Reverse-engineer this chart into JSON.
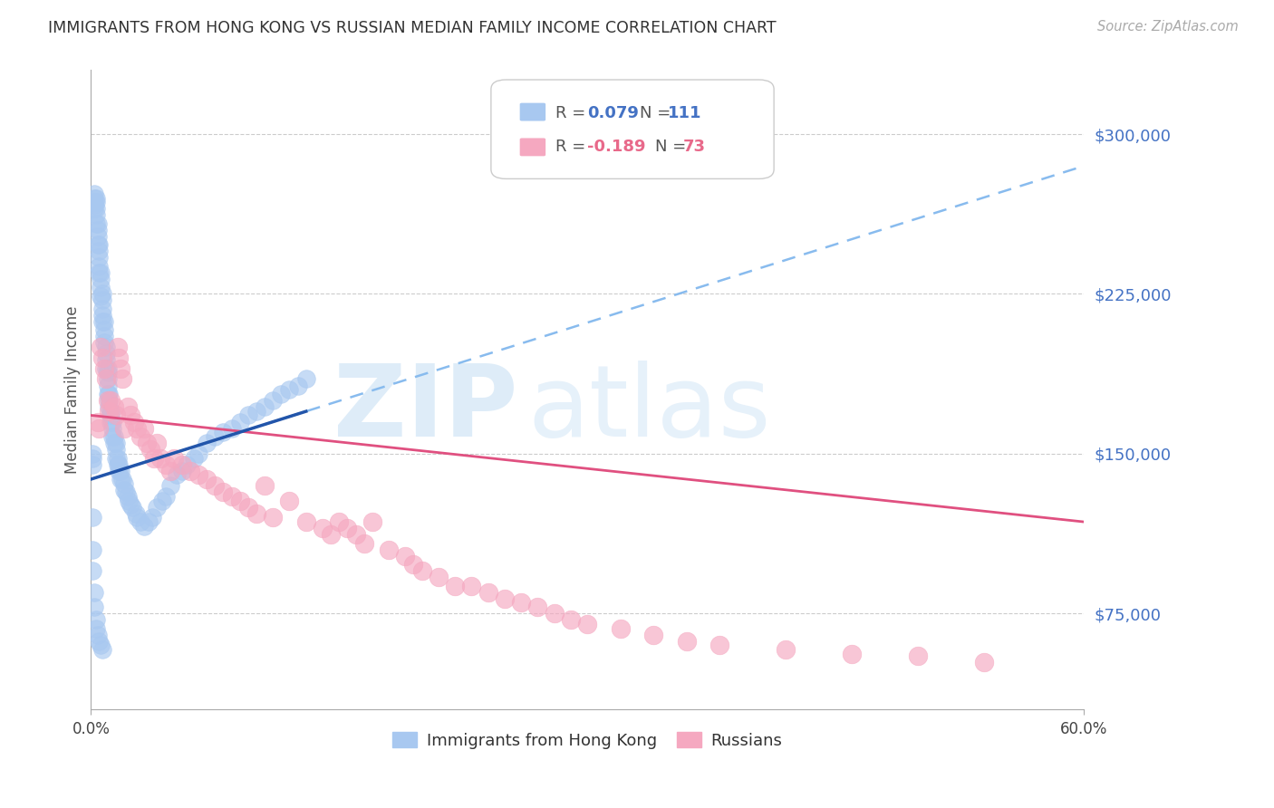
{
  "title": "IMMIGRANTS FROM HONG KONG VS RUSSIAN MEDIAN FAMILY INCOME CORRELATION CHART",
  "source": "Source: ZipAtlas.com",
  "ylabel": "Median Family Income",
  "y_tick_values": [
    75000,
    150000,
    225000,
    300000
  ],
  "y_tick_labels": [
    "$75,000",
    "$150,000",
    "$225,000",
    "$300,000"
  ],
  "y_min": 30000,
  "y_max": 330000,
  "x_min": 0.0,
  "x_max": 0.6,
  "hk_color": "#A8C8F0",
  "ru_color": "#F5A8C0",
  "hk_line_color": "#2255AA",
  "ru_line_color": "#E05080",
  "hk_dash_color": "#88BBEE",
  "legend_box_edge": "#CCCCCC",
  "grid_color": "#CCCCCC",
  "hk_points_x": [
    0.001,
    0.001,
    0.001,
    0.002,
    0.002,
    0.002,
    0.002,
    0.002,
    0.003,
    0.003,
    0.003,
    0.003,
    0.003,
    0.004,
    0.004,
    0.004,
    0.004,
    0.005,
    0.005,
    0.005,
    0.005,
    0.005,
    0.006,
    0.006,
    0.006,
    0.006,
    0.007,
    0.007,
    0.007,
    0.007,
    0.007,
    0.008,
    0.008,
    0.008,
    0.008,
    0.009,
    0.009,
    0.009,
    0.009,
    0.01,
    0.01,
    0.01,
    0.01,
    0.01,
    0.011,
    0.011,
    0.011,
    0.012,
    0.012,
    0.012,
    0.013,
    0.013,
    0.013,
    0.014,
    0.014,
    0.015,
    0.015,
    0.015,
    0.016,
    0.016,
    0.017,
    0.017,
    0.018,
    0.018,
    0.019,
    0.02,
    0.02,
    0.021,
    0.022,
    0.023,
    0.024,
    0.025,
    0.027,
    0.028,
    0.03,
    0.032,
    0.035,
    0.037,
    0.04,
    0.043,
    0.045,
    0.048,
    0.052,
    0.055,
    0.058,
    0.062,
    0.065,
    0.07,
    0.075,
    0.08,
    0.085,
    0.09,
    0.095,
    0.1,
    0.105,
    0.11,
    0.115,
    0.12,
    0.125,
    0.13,
    0.001,
    0.001,
    0.001,
    0.002,
    0.002,
    0.003,
    0.003,
    0.004,
    0.005,
    0.006,
    0.007
  ],
  "hk_points_y": [
    145000,
    150000,
    148000,
    270000,
    268000,
    272000,
    265000,
    267000,
    270000,
    268000,
    265000,
    262000,
    258000,
    258000,
    255000,
    252000,
    248000,
    248000,
    245000,
    242000,
    238000,
    235000,
    235000,
    232000,
    228000,
    224000,
    225000,
    222000,
    218000,
    215000,
    212000,
    212000,
    208000,
    205000,
    202000,
    200000,
    197000,
    194000,
    190000,
    190000,
    188000,
    185000,
    182000,
    178000,
    178000,
    175000,
    172000,
    170000,
    168000,
    165000,
    165000,
    162000,
    158000,
    158000,
    155000,
    155000,
    152000,
    148000,
    148000,
    145000,
    145000,
    142000,
    142000,
    138000,
    138000,
    136000,
    133000,
    132000,
    130000,
    128000,
    126000,
    125000,
    122000,
    120000,
    118000,
    116000,
    118000,
    120000,
    125000,
    128000,
    130000,
    135000,
    140000,
    142000,
    145000,
    148000,
    150000,
    155000,
    158000,
    160000,
    162000,
    165000,
    168000,
    170000,
    172000,
    175000,
    178000,
    180000,
    182000,
    185000,
    120000,
    105000,
    95000,
    85000,
    78000,
    72000,
    68000,
    65000,
    62000,
    60000,
    58000
  ],
  "ru_points_x": [
    0.004,
    0.005,
    0.006,
    0.007,
    0.008,
    0.009,
    0.01,
    0.011,
    0.012,
    0.014,
    0.015,
    0.016,
    0.017,
    0.018,
    0.019,
    0.02,
    0.022,
    0.024,
    0.026,
    0.028,
    0.03,
    0.032,
    0.034,
    0.036,
    0.038,
    0.04,
    0.042,
    0.045,
    0.048,
    0.05,
    0.055,
    0.06,
    0.065,
    0.07,
    0.075,
    0.08,
    0.085,
    0.09,
    0.095,
    0.1,
    0.105,
    0.11,
    0.12,
    0.13,
    0.14,
    0.145,
    0.15,
    0.155,
    0.16,
    0.165,
    0.17,
    0.18,
    0.19,
    0.195,
    0.2,
    0.21,
    0.22,
    0.23,
    0.24,
    0.25,
    0.26,
    0.27,
    0.28,
    0.29,
    0.3,
    0.32,
    0.34,
    0.36,
    0.38,
    0.42,
    0.46,
    0.5,
    0.54
  ],
  "ru_points_y": [
    165000,
    162000,
    200000,
    195000,
    190000,
    185000,
    175000,
    170000,
    175000,
    172000,
    168000,
    200000,
    195000,
    190000,
    185000,
    162000,
    172000,
    168000,
    165000,
    162000,
    158000,
    162000,
    155000,
    152000,
    148000,
    155000,
    148000,
    145000,
    142000,
    148000,
    145000,
    142000,
    140000,
    138000,
    135000,
    132000,
    130000,
    128000,
    125000,
    122000,
    135000,
    120000,
    128000,
    118000,
    115000,
    112000,
    118000,
    115000,
    112000,
    108000,
    118000,
    105000,
    102000,
    98000,
    95000,
    92000,
    88000,
    88000,
    85000,
    82000,
    80000,
    78000,
    75000,
    72000,
    70000,
    68000,
    65000,
    62000,
    60000,
    58000,
    56000,
    55000,
    52000
  ]
}
